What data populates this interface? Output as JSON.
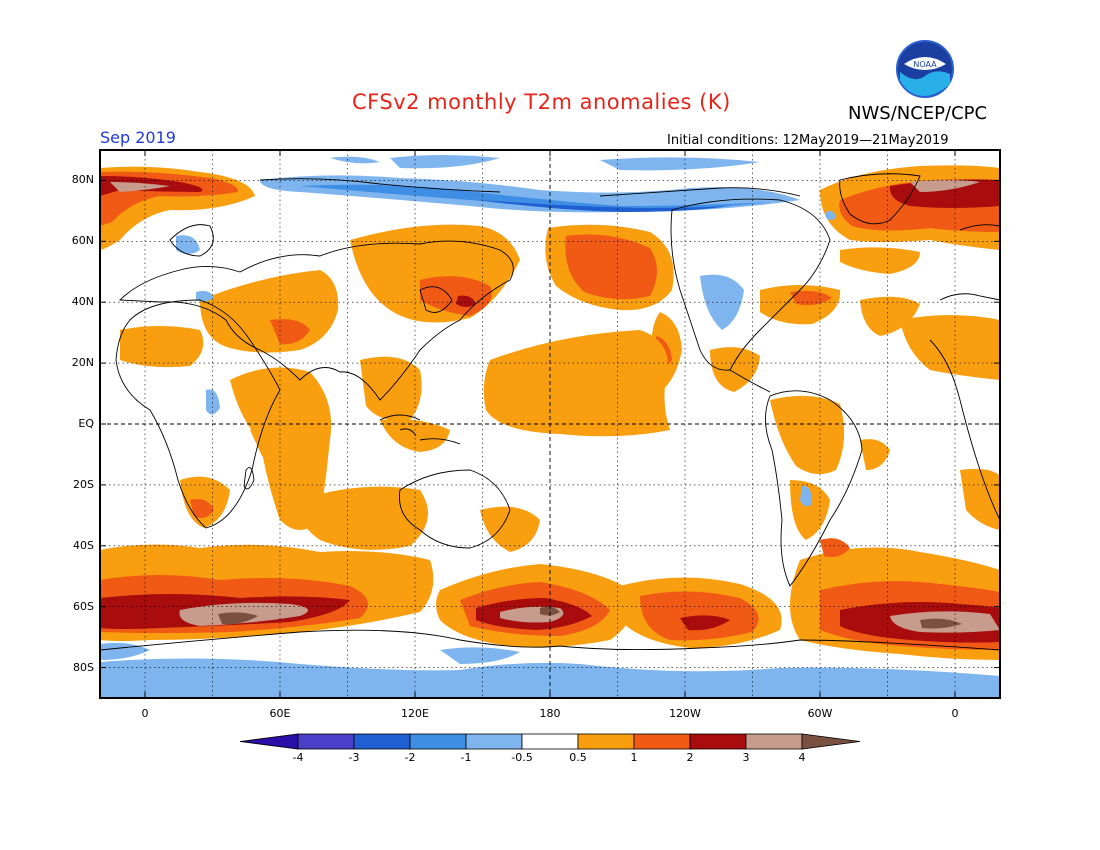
{
  "title": "CFSv2 monthly T2m anomalies (K)",
  "month": "Sep 2019",
  "initial_conditions": "Initial conditions: 12May2019—21May2019",
  "organization": "NWS/NCEP/CPC",
  "logo": {
    "text": "NOAA",
    "icon": "noaa-logo-icon"
  },
  "map": {
    "projection": "equirectangular",
    "lon_range": [
      -20,
      380
    ],
    "lat_range": [
      -90,
      90
    ],
    "lat_labels": [
      "80N",
      "60N",
      "40N",
      "20N",
      "EQ",
      "20S",
      "40S",
      "60S",
      "80S"
    ],
    "lon_labels": [
      "0",
      "60E",
      "120E",
      "180",
      "120W",
      "60W",
      "0"
    ],
    "grid": "dotted",
    "reference_lines": [
      "EQ",
      "180"
    ]
  },
  "colorbar": {
    "labels": [
      "-4",
      "-3",
      "-2",
      "-1",
      "-0.5",
      "0.5",
      "1",
      "2",
      "3",
      "4"
    ],
    "colors": [
      "#2a0fa8",
      "#4a3fc9",
      "#1f5fd1",
      "#3f8ee6",
      "#7fb5ef",
      "#ffffff",
      "#f99f0f",
      "#f05a14",
      "#a80c0c",
      "#c89c8c",
      "#7a5040"
    ]
  }
}
